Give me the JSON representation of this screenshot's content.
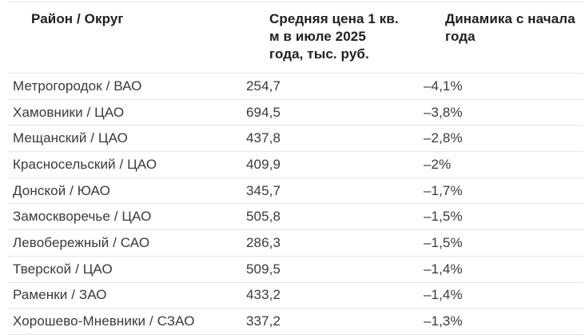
{
  "chart_data": {
    "type": "table",
    "title": "",
    "columns": [
      "Район / Округ",
      "Средняя цена 1 кв. м в июле 2025 года, тыс. руб.",
      "Динамика с начала года"
    ],
    "rows": [
      [
        "Метрогородок / ВАО",
        "254,7",
        "–4,1%"
      ],
      [
        "Хамовники / ЦАО",
        "694,5",
        "–3,8%"
      ],
      [
        "Мещанский / ЦАО",
        "437,8",
        "–2,8%"
      ],
      [
        "Красносельский / ЦАО",
        "409,9",
        "–2%"
      ],
      [
        "Донской / ЮАО",
        "345,7",
        "–1,7%"
      ],
      [
        "Замоскворечье / ЦАО",
        "505,8",
        "–1,5%"
      ],
      [
        "Левобережный / САО",
        "286,3",
        "–1,5%"
      ],
      [
        "Тверской / ЦАО",
        "509,5",
        "–1,4%"
      ],
      [
        "Раменки / ЗАО",
        "433,2",
        "–1,4%"
      ],
      [
        "Хорошево-Мневники / СЗАО",
        "337,2",
        "–1,3%"
      ]
    ]
  },
  "table": {
    "header": {
      "col1": "Район / Округ",
      "col2": "Средняя цена 1 кв.\nм в июле 2025\nгода, тыс. руб.",
      "col3": "Динамика с начала\nгода"
    },
    "rows": [
      {
        "district": "Метрогородок / ВАО",
        "price": "254,7",
        "change": "–4,1%"
      },
      {
        "district": "Хамовники / ЦАО",
        "price": "694,5",
        "change": "–3,8%"
      },
      {
        "district": "Мещанский / ЦАО",
        "price": "437,8",
        "change": "–2,8%"
      },
      {
        "district": "Красносельский / ЦАО",
        "price": "409,9",
        "change": "–2%"
      },
      {
        "district": "Донской / ЮАО",
        "price": "345,7",
        "change": "–1,7%"
      },
      {
        "district": "Замоскворечье / ЦАО",
        "price": "505,8",
        "change": "–1,5%"
      },
      {
        "district": "Левобережный / САО",
        "price": "286,3",
        "change": "–1,5%"
      },
      {
        "district": "Тверской / ЦАО",
        "price": "509,5",
        "change": "–1,4%"
      },
      {
        "district": "Раменки / ЗАО",
        "price": "433,2",
        "change": "–1,4%"
      },
      {
        "district": "Хорошево-Мневники / СЗАО",
        "price": "337,2",
        "change": "–1,3%"
      }
    ],
    "colors": {
      "header_text": "#1f1f1f",
      "row_text": "#3a3a3a",
      "divider": "#e6e6e6"
    }
  }
}
